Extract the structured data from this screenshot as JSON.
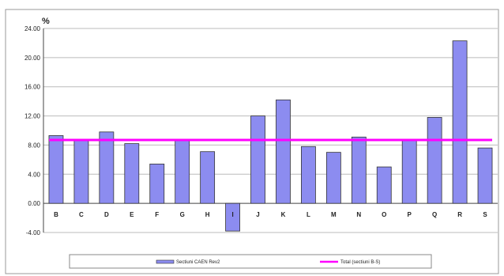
{
  "chart_data": {
    "type": "bar",
    "ylabel": "%",
    "ylim": [
      -4,
      24
    ],
    "yticks": [
      "24.00",
      "20.00",
      "16.00",
      "12.00",
      "8.00",
      "4.00",
      "0.00",
      "-4.00"
    ],
    "grid": true,
    "categories": [
      "B",
      "C",
      "D",
      "E",
      "F",
      "G",
      "H",
      "I",
      "J",
      "K",
      "L",
      "M",
      "N",
      "O",
      "P",
      "Q",
      "R",
      "S"
    ],
    "series": [
      {
        "name": "Sectiuni CAEN Rev2",
        "type": "bar",
        "color": "#8c8cf0",
        "values": [
          9.3,
          8.8,
          9.8,
          8.2,
          5.4,
          8.6,
          7.1,
          -3.8,
          12.0,
          14.2,
          7.8,
          7.0,
          9.1,
          5.0,
          8.8,
          11.8,
          22.3,
          7.6
        ]
      },
      {
        "name": "Total (sectiuni B-S)",
        "type": "line",
        "color": "#ff00ff",
        "value": 8.7
      }
    ],
    "legend_position": "bottom"
  }
}
